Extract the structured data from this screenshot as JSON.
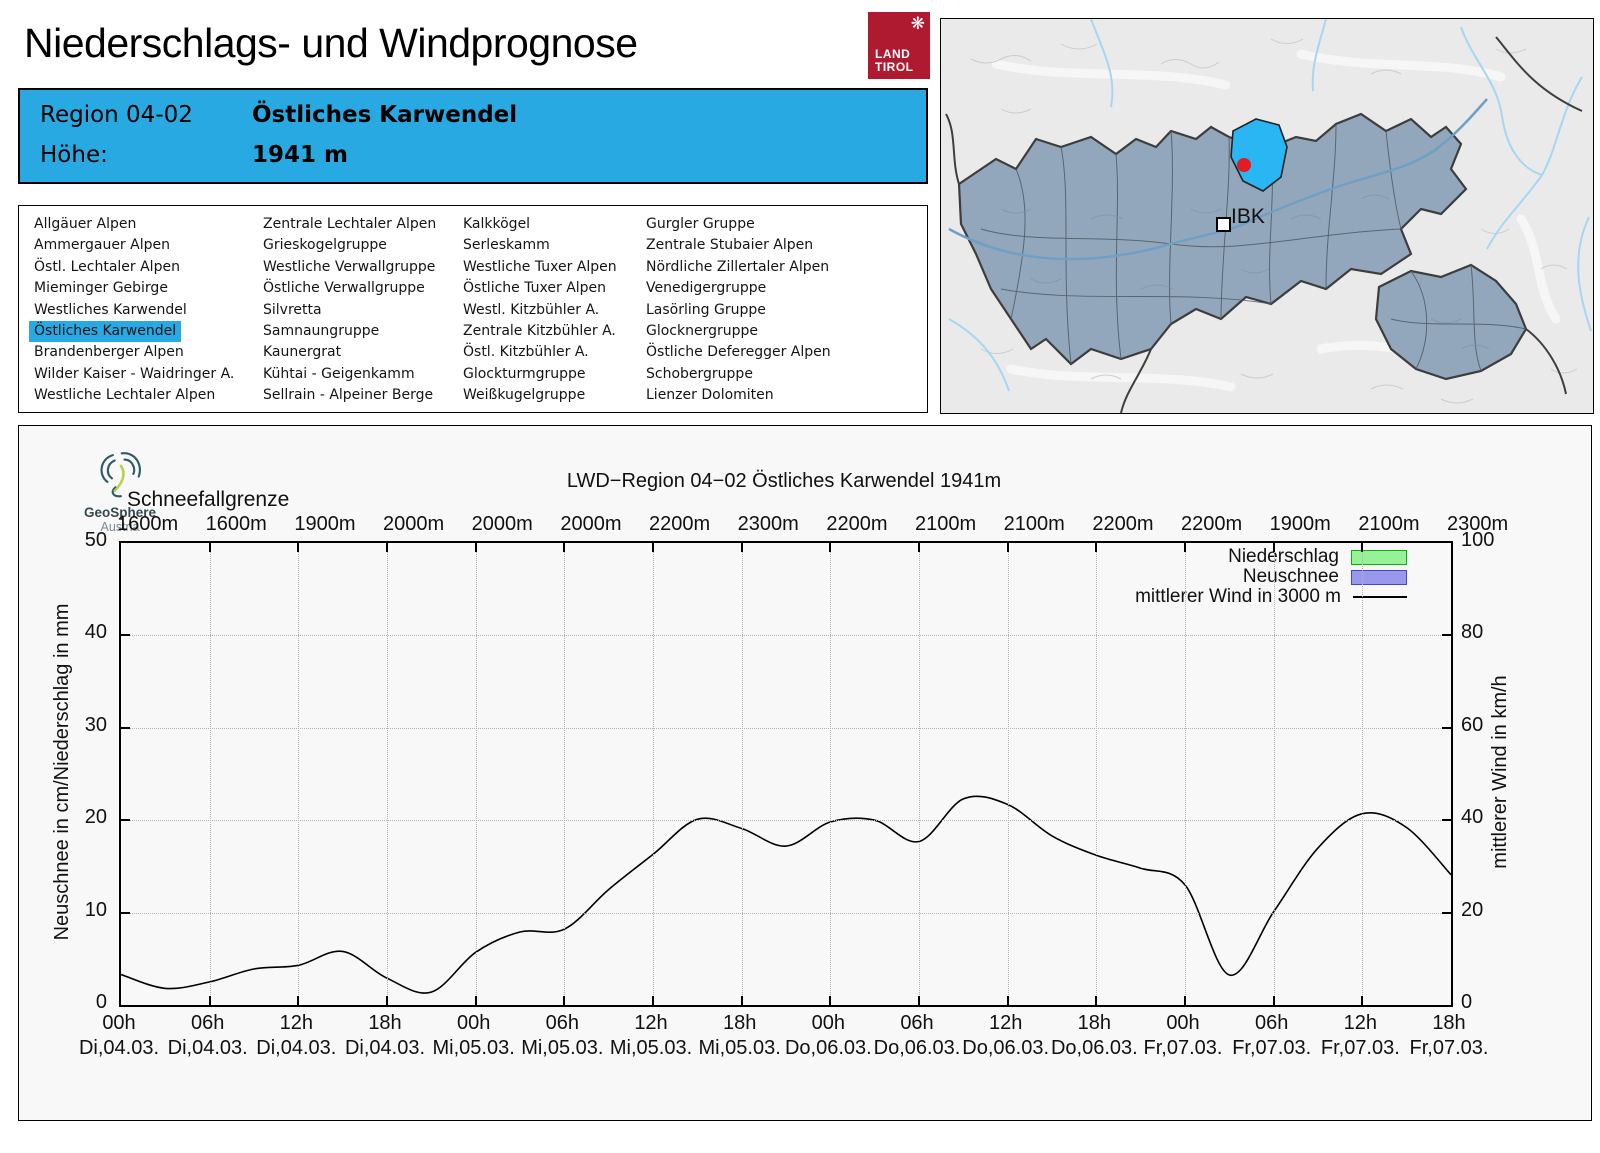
{
  "header": {
    "title": "Niederschlags- und Windprognose",
    "logo": {
      "line1": "LAND",
      "line2": "TIROL",
      "color": "#b01a30"
    }
  },
  "region_box": {
    "region_label": "Region 04-02",
    "region_name": "Östliches Karwendel",
    "altitude_label": "Höhe:",
    "altitude_value": "1941 m",
    "accent_color": "#29a9e1"
  },
  "region_list": {
    "selected": "Östliches Karwendel",
    "columns": [
      [
        "Allgäuer Alpen",
        "Ammergauer Alpen",
        "Östl. Lechtaler Alpen",
        "Mieminger Gebirge",
        "Westliches Karwendel",
        "Östliches Karwendel",
        "Brandenberger Alpen",
        "Wilder Kaiser - Waidringer A.",
        "Westliche Lechtaler Alpen"
      ],
      [
        "Zentrale Lechtaler Alpen",
        "Grieskogelgruppe",
        "Westliche Verwallgruppe",
        "Östliche Verwallgruppe",
        "Silvretta",
        "Samnaungruppe",
        "Kaunergrat",
        "Kühtai - Geigenkamm",
        "Sellrain - Alpeiner Berge"
      ],
      [
        "Kalkkögel",
        "Serleskamm",
        "Westliche Tuxer Alpen",
        "Östliche Tuxer Alpen",
        "Westl. Kitzbühler A.",
        "Zentrale Kitzbühler A.",
        "Östl. Kitzbühler A.",
        "Glockturmgruppe",
        "Weißkugelgruppe"
      ],
      [
        "Gurgler Gruppe",
        "Zentrale Stubaier Alpen",
        "Nördliche Zillertaler Alpen",
        "Venedigergruppe",
        "Lasörling Gruppe",
        "Glocknergruppe",
        "Östliche Deferegger Alpen",
        "Schobergruppe",
        "Lienzer Dolomiten"
      ]
    ]
  },
  "map": {
    "city_label": "IBK",
    "highlight_color": "#29b6f2",
    "region_fill": "#93a7bc",
    "marker_color": "#e31b23"
  },
  "geosphere": {
    "name": "GeoSphere",
    "country": "Austria"
  },
  "chart_data": {
    "type": "line",
    "title": "LWD−Region 04−02 Östliches Karwendel 1941m",
    "snowline_label": "Schneefallgrenze",
    "snowline_values": [
      "1600m",
      "1600m",
      "1900m",
      "2000m",
      "2000m",
      "2000m",
      "2200m",
      "2300m",
      "2200m",
      "2100m",
      "2100m",
      "2200m",
      "2200m",
      "1900m",
      "2100m",
      "2300m"
    ],
    "x_ticks": [
      {
        "hour": "00h",
        "day": "Di,04.03."
      },
      {
        "hour": "06h",
        "day": "Di,04.03."
      },
      {
        "hour": "12h",
        "day": "Di,04.03."
      },
      {
        "hour": "18h",
        "day": "Di,04.03."
      },
      {
        "hour": "00h",
        "day": "Mi,05.03."
      },
      {
        "hour": "06h",
        "day": "Mi,05.03."
      },
      {
        "hour": "12h",
        "day": "Mi,05.03."
      },
      {
        "hour": "18h",
        "day": "Mi,05.03."
      },
      {
        "hour": "00h",
        "day": "Do,06.03."
      },
      {
        "hour": "06h",
        "day": "Do,06.03."
      },
      {
        "hour": "12h",
        "day": "Do,06.03."
      },
      {
        "hour": "18h",
        "day": "Do,06.03."
      },
      {
        "hour": "00h",
        "day": "Fr,07.03."
      },
      {
        "hour": "06h",
        "day": "Fr,07.03."
      },
      {
        "hour": "12h",
        "day": "Fr,07.03."
      },
      {
        "hour": "18h",
        "day": "Fr,07.03."
      }
    ],
    "y_left": {
      "label": "Neuschnee in cm/Niederschlag in mm",
      "min": 0,
      "max": 50,
      "ticks": [
        0,
        10,
        20,
        30,
        40,
        50
      ]
    },
    "y_right": {
      "label": "mittlerer Wind in km/h",
      "min": 0,
      "max": 100,
      "ticks": [
        0,
        20,
        40,
        60,
        80,
        100
      ]
    },
    "legend": [
      {
        "label": "Niederschlag",
        "type": "box",
        "fill": "#97f197",
        "border": "#06b206"
      },
      {
        "label": "Neuschnee",
        "type": "box",
        "fill": "#9898ec",
        "border": "#4646c8"
      },
      {
        "label": "mittlerer Wind in 3000 m",
        "type": "line",
        "color": "#000000"
      }
    ],
    "series": [
      {
        "name": "Niederschlag",
        "unit": "mm",
        "step_hours": 6,
        "values": [
          0,
          0,
          0,
          0,
          0,
          0,
          0,
          0,
          0,
          0,
          0,
          0,
          0,
          0,
          0,
          0
        ]
      },
      {
        "name": "Neuschnee",
        "unit": "cm",
        "step_hours": 6,
        "values": [
          0,
          0,
          0,
          0,
          0,
          0,
          0,
          0,
          0,
          0,
          0,
          0,
          0,
          0,
          0,
          0
        ]
      },
      {
        "name": "mittlerer Wind in 3000 m",
        "unit": "km/h",
        "step_hours": 3,
        "values": [
          6.6,
          3.6,
          5.0,
          7.8,
          8.6,
          11.6,
          5.8,
          2.8,
          11.4,
          15.8,
          16.4,
          25.0,
          32.6,
          40.2,
          38.2,
          34.4,
          39.6,
          40.0,
          35.4,
          44.6,
          43.4,
          36.6,
          32.4,
          29.6,
          26.0,
          6.5,
          20.2,
          34.0,
          41.4,
          38.4,
          28.2
        ]
      }
    ],
    "grid": true,
    "legend_position": "top-right"
  }
}
